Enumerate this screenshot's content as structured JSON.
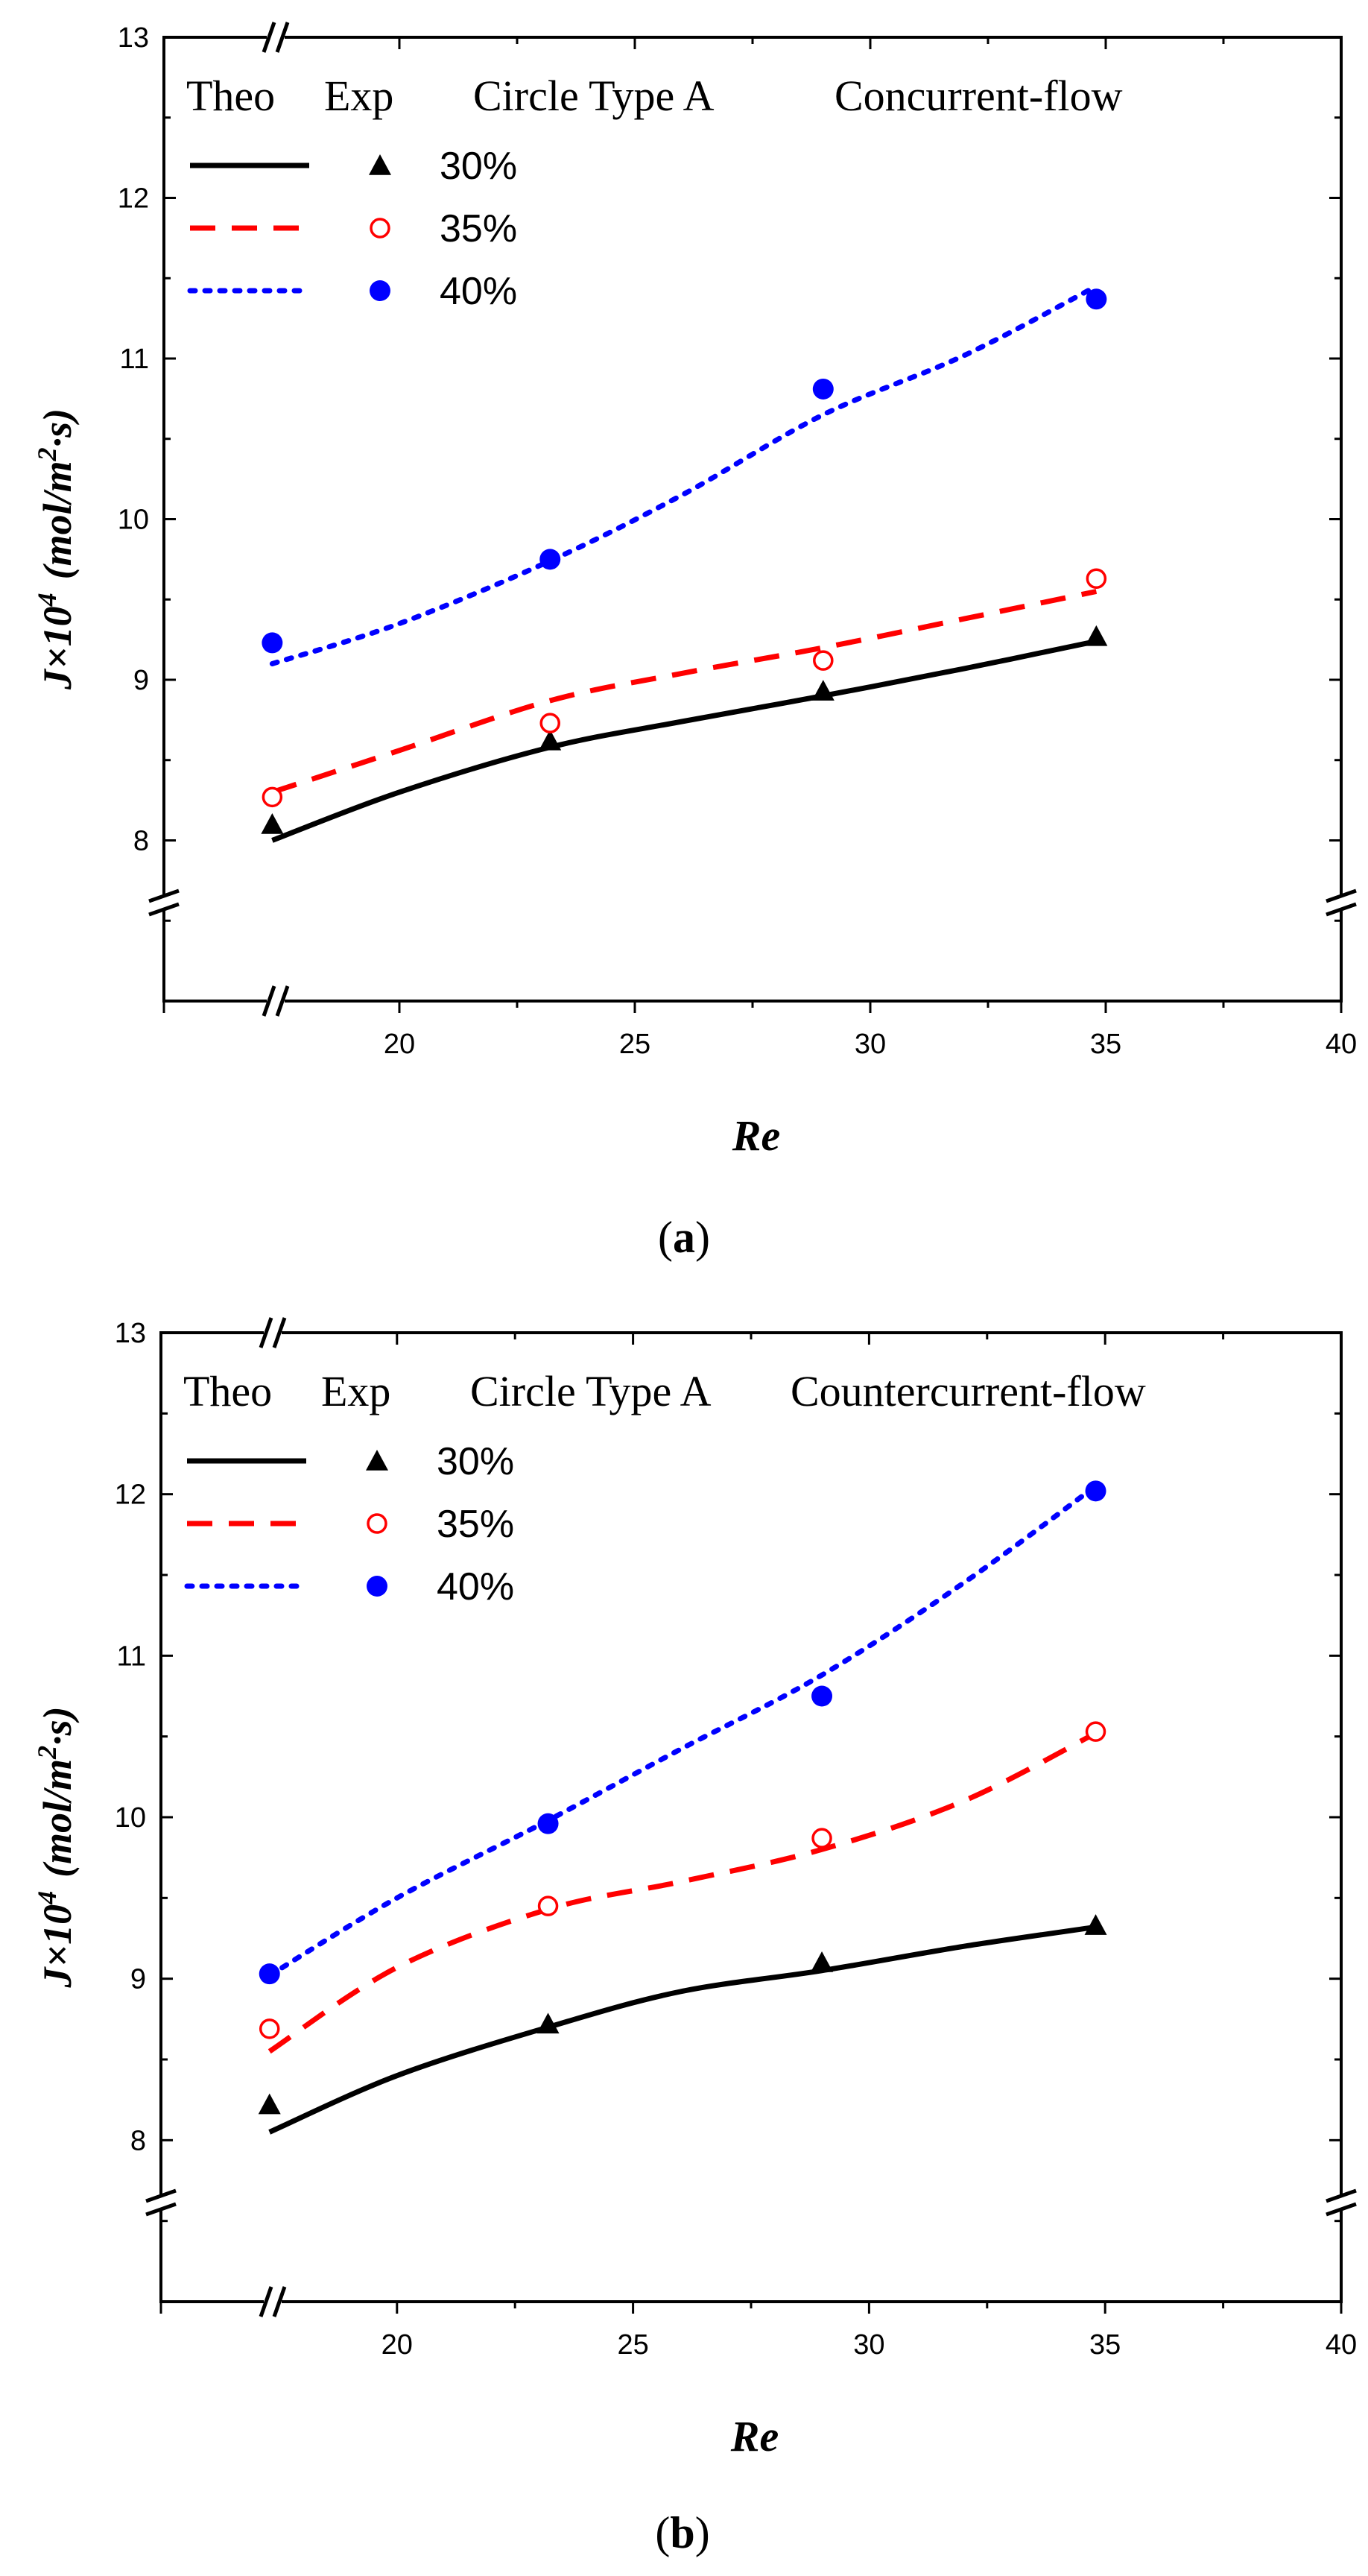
{
  "chart_data": [
    {
      "type": "line",
      "panel": "a",
      "caption_letter": "a",
      "legend_header": {
        "theo": "Theo",
        "exp": "Exp",
        "membrane": "Circle Type A",
        "flow": "Concurrent-flow"
      },
      "xlabel": "Re",
      "ylabel": "J×10",
      "ylabel_sup": "4",
      "ylabel_units": "(mol/m",
      "ylabel_units_sup": "2",
      "ylabel_units_tail": "·s)",
      "xlim": [
        15,
        40
      ],
      "ylim": [
        7,
        13
      ],
      "x_ticks": [
        20,
        25,
        30,
        35,
        40
      ],
      "y_ticks": [
        8,
        9,
        10,
        11,
        12,
        13
      ],
      "series": [
        {
          "name": "30%",
          "color": "#000000",
          "line_style": "solid",
          "marker": "filled-triangle",
          "theo_x": [
            17.3,
            20,
            23.2,
            26,
            29,
            32,
            34.8
          ],
          "theo_y": [
            8.0,
            8.3,
            8.58,
            8.74,
            8.9,
            9.07,
            9.24
          ],
          "exp_x": [
            17.3,
            23.2,
            29.0,
            34.8
          ],
          "exp_y": [
            8.1,
            8.62,
            8.93,
            9.27
          ]
        },
        {
          "name": "35%",
          "color": "#ff0000",
          "line_style": "dashed",
          "marker": "open-circle",
          "theo_x": [
            17.3,
            20,
            23.2,
            26,
            29,
            32,
            34.8
          ],
          "theo_y": [
            8.3,
            8.56,
            8.87,
            9.04,
            9.2,
            9.38,
            9.55
          ],
          "exp_x": [
            17.3,
            23.2,
            29.0,
            34.8
          ],
          "exp_y": [
            8.27,
            8.73,
            9.12,
            9.63
          ]
        },
        {
          "name": "40%",
          "color": "#0000ff",
          "line_style": "dotted",
          "marker": "filled-circle",
          "theo_x": [
            17.3,
            20,
            23.2,
            26,
            29,
            32,
            34.8
          ],
          "theo_y": [
            9.1,
            9.35,
            9.74,
            10.15,
            10.65,
            11.02,
            11.45
          ],
          "exp_x": [
            17.3,
            23.2,
            29.0,
            34.8
          ],
          "exp_y": [
            9.23,
            9.75,
            10.81,
            11.37
          ]
        }
      ]
    },
    {
      "type": "line",
      "panel": "b",
      "caption_letter": "b",
      "legend_header": {
        "theo": "Theo",
        "exp": "Exp",
        "membrane": "Circle Type A",
        "flow": "Countercurrent-flow"
      },
      "xlabel": "Re",
      "ylabel": "J×10",
      "ylabel_sup": "4",
      "ylabel_units": "(mol/m",
      "ylabel_units_sup": "2",
      "ylabel_units_tail": "·s)",
      "xlim": [
        15,
        40
      ],
      "ylim": [
        7,
        13
      ],
      "x_ticks": [
        20,
        25,
        30,
        35,
        40
      ],
      "y_ticks": [
        8,
        9,
        10,
        11,
        12,
        13
      ],
      "series": [
        {
          "name": "30%",
          "color": "#000000",
          "line_style": "solid",
          "marker": "filled-triangle",
          "theo_x": [
            17.3,
            20,
            23.2,
            26,
            29,
            32,
            34.8
          ],
          "theo_y": [
            8.05,
            8.4,
            8.7,
            8.92,
            9.05,
            9.2,
            9.32
          ],
          "exp_x": [
            17.3,
            23.2,
            29.0,
            34.8
          ],
          "exp_y": [
            8.22,
            8.72,
            9.1,
            9.33
          ]
        },
        {
          "name": "35%",
          "color": "#ff0000",
          "line_style": "dashed",
          "marker": "open-circle",
          "theo_x": [
            17.3,
            20,
            23.2,
            26,
            29,
            32,
            34.8
          ],
          "theo_y": [
            8.55,
            9.07,
            9.43,
            9.6,
            9.8,
            10.1,
            10.52
          ],
          "exp_x": [
            17.3,
            23.2,
            29.0,
            34.8
          ],
          "exp_y": [
            8.69,
            9.45,
            9.87,
            10.53
          ]
        },
        {
          "name": "40%",
          "color": "#0000ff",
          "line_style": "dotted",
          "marker": "filled-circle",
          "theo_x": [
            17.3,
            20,
            23.2,
            26,
            29,
            32,
            34.8
          ],
          "theo_y": [
            9.02,
            9.5,
            9.98,
            10.42,
            10.88,
            11.45,
            12.05
          ],
          "exp_x": [
            17.3,
            23.2,
            29.0,
            34.8
          ],
          "exp_y": [
            9.03,
            9.96,
            10.75,
            12.02
          ]
        }
      ]
    }
  ]
}
